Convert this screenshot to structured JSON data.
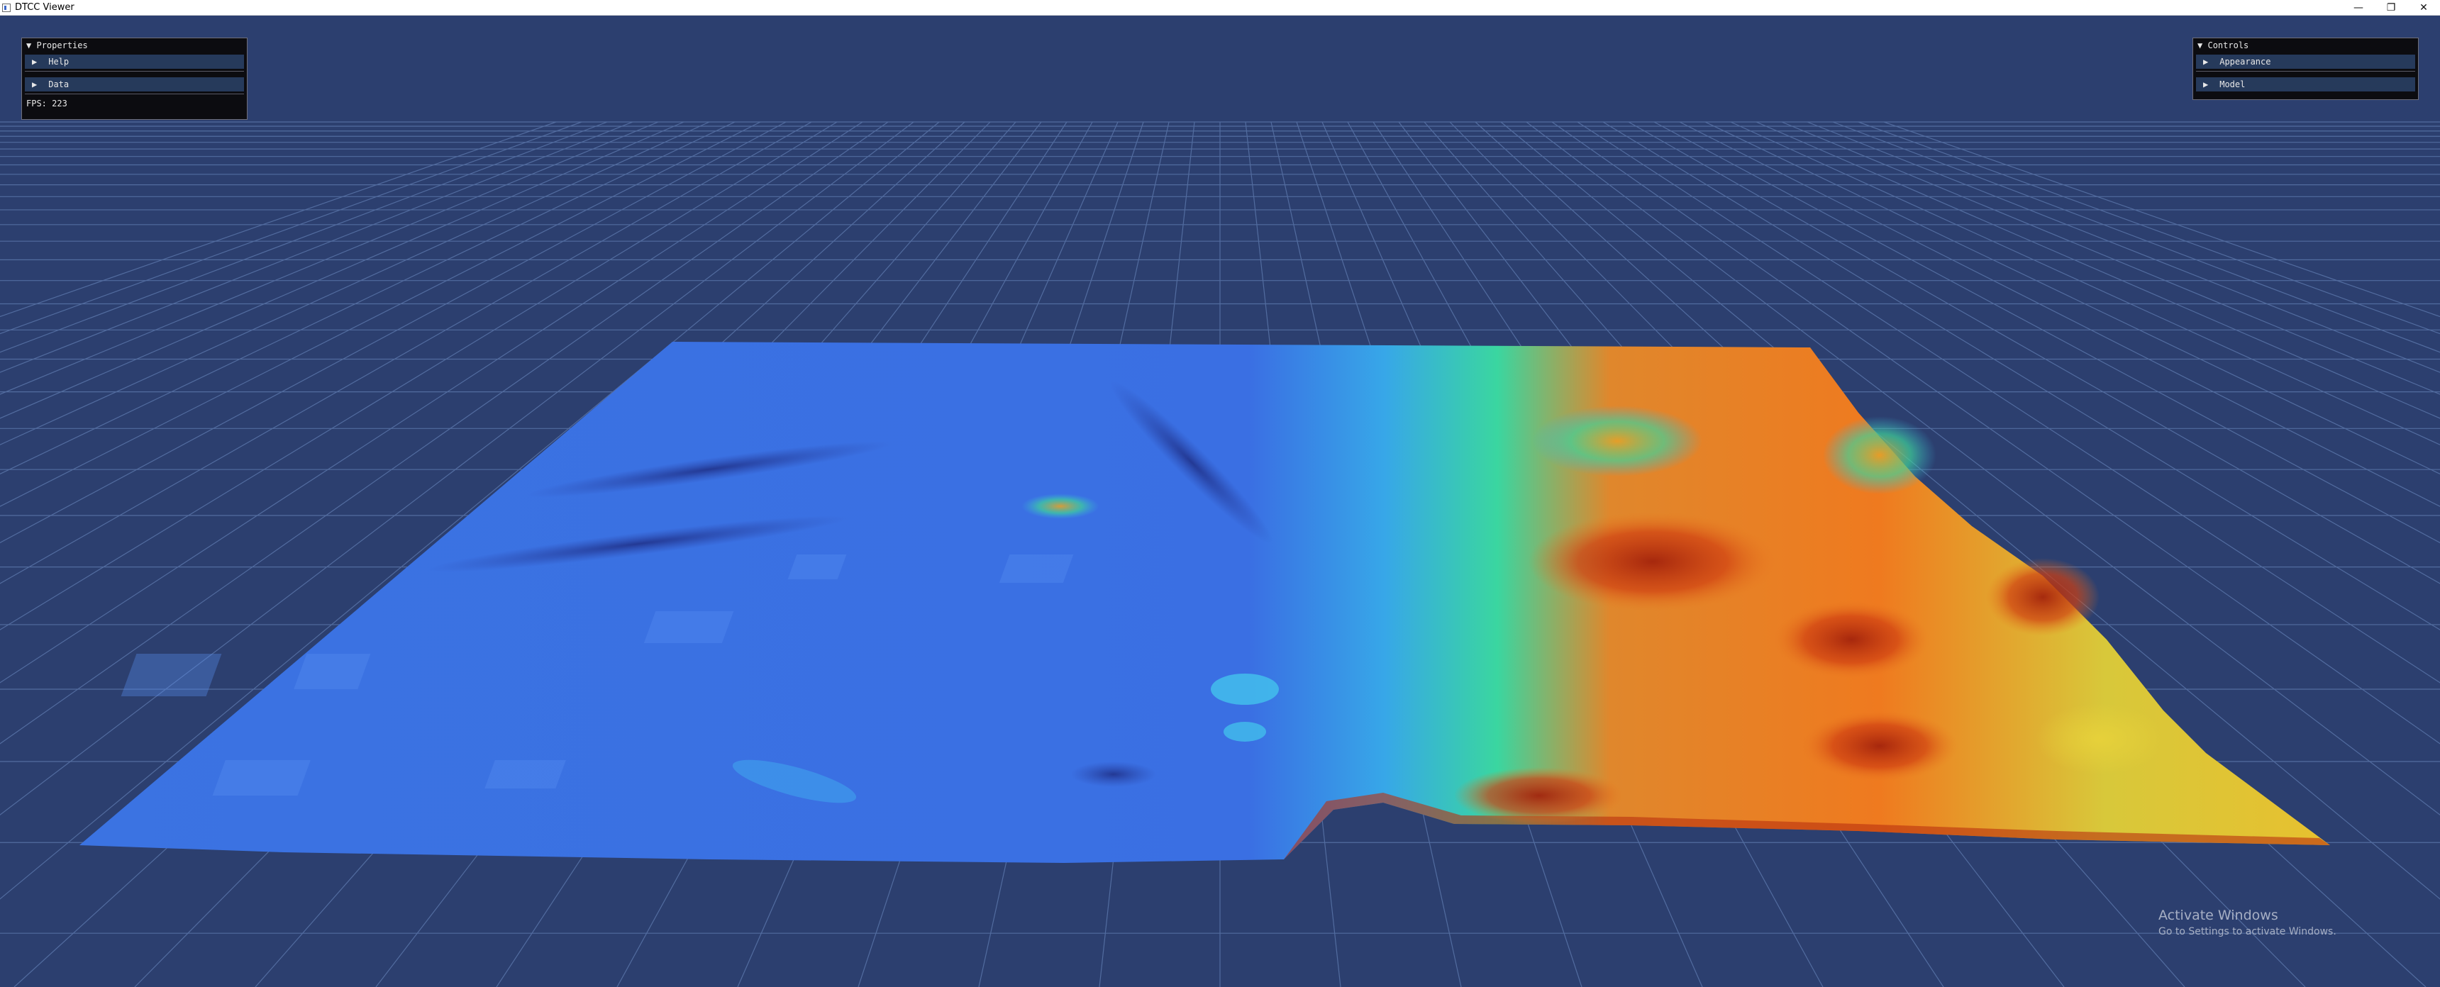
{
  "window": {
    "title": "DTCC Viewer",
    "minimize_glyph": "—",
    "restore_glyph": "❐",
    "close_glyph": "✕"
  },
  "left_panel": {
    "header": "Properties",
    "items": [
      {
        "label": "Help"
      },
      {
        "label": "Data"
      }
    ],
    "fps_text": "FPS: 223"
  },
  "right_panel": {
    "header": "Controls",
    "items": [
      {
        "label": "Appearance"
      },
      {
        "label": "Model"
      }
    ]
  },
  "glyphs": {
    "expanded": "▼",
    "collapsed": "▶"
  },
  "watermark": {
    "line1": "Activate Windows",
    "line2": "Go to Settings to activate Windows."
  },
  "colors": {
    "background": "#2c3f6f",
    "grid": "#5f7bb0",
    "terrain_low": "#3c78e6",
    "terrain_mid": "#38d49a",
    "terrain_high": "#d8421a"
  }
}
